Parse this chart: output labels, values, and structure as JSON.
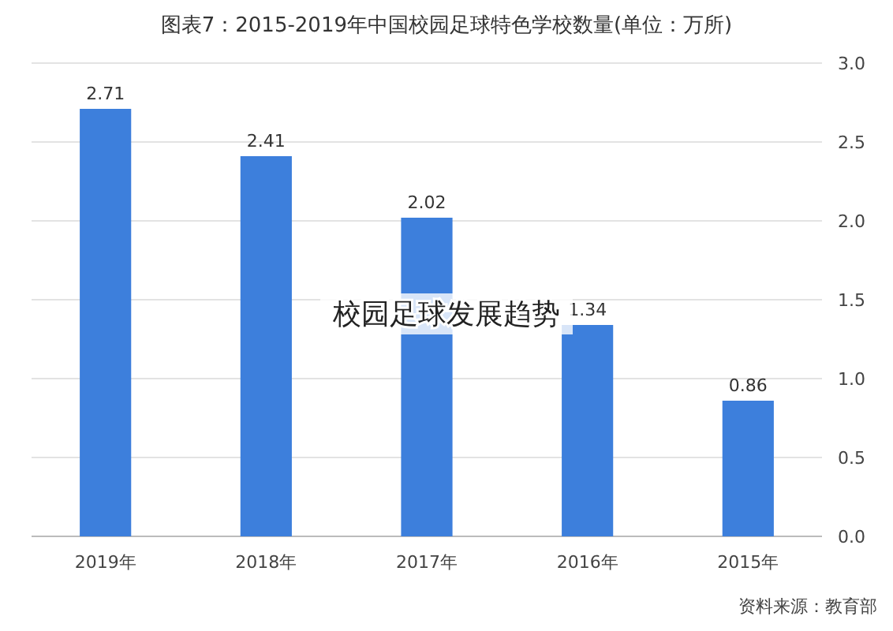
{
  "chart_data": {
    "type": "bar",
    "title": "图表7：2015-2019年中国校园足球特色学校数量(单位：万所)",
    "categories": [
      "2019年",
      "2018年",
      "2017年",
      "2016年",
      "2015年"
    ],
    "values": [
      2.71,
      2.41,
      2.02,
      1.34,
      0.86
    ],
    "color": "#3d7fdc",
    "data_labels": true,
    "ylim": [
      0,
      3
    ],
    "yticks": [
      {
        "value": 0,
        "label": "0.0"
      },
      {
        "value": 0.5,
        "label": "0.5"
      },
      {
        "value": 1,
        "label": "1.0"
      },
      {
        "value": 1.5,
        "label": "1.5"
      },
      {
        "value": 2,
        "label": "2.0"
      },
      {
        "value": 2.5,
        "label": "2.5"
      },
      {
        "value": 3,
        "label": "3.0"
      }
    ],
    "grid": "y",
    "annotations": [
      "校园足球发展趋势",
      "资料来源：教育部"
    ]
  }
}
